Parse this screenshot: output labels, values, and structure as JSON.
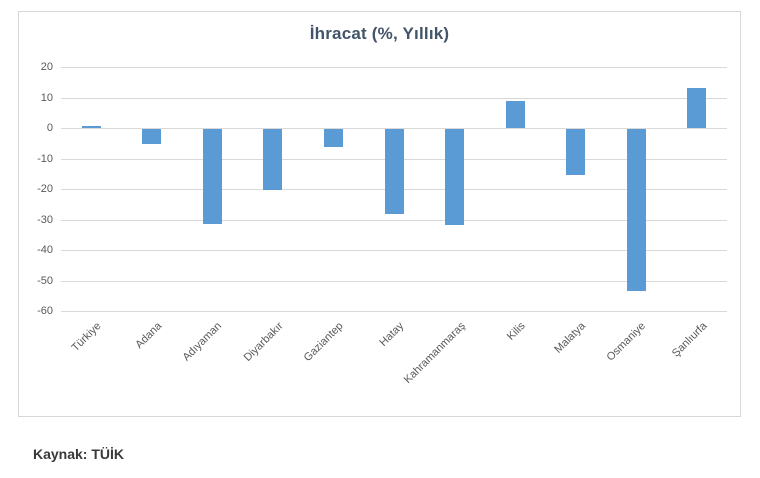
{
  "source_note": "Kaynak: TÜİK",
  "colors": {
    "bar": "#5b9bd5",
    "title_text": "#44546a",
    "axis_text": "#595959",
    "gridline": "#d9d9d9",
    "frame_border": "#d7d7d7",
    "source_text": "#383838"
  },
  "chart_data": {
    "type": "bar",
    "title": "İhracat (%, Yıllık)",
    "categories": [
      "Türkiye",
      "Adana",
      "Adıyaman",
      "Diyarbakır",
      "Gaziantep",
      "Hatay",
      "Kahramanmaraş",
      "Kilis",
      "Malatya",
      "Osmaniye",
      "Şanlıurfa"
    ],
    "values": [
      0.5,
      -5,
      -31,
      -20,
      -6,
      -28,
      -31.5,
      9,
      -15,
      -53,
      13
    ],
    "xlabel": "",
    "ylabel": "",
    "ylim": [
      -60,
      20
    ],
    "ytick_interval": 10,
    "yticks": [
      20,
      10,
      0,
      -10,
      -20,
      -30,
      -40,
      -50,
      -60
    ],
    "grid": true,
    "legend": false,
    "bar_color": "#5b9bd5"
  }
}
